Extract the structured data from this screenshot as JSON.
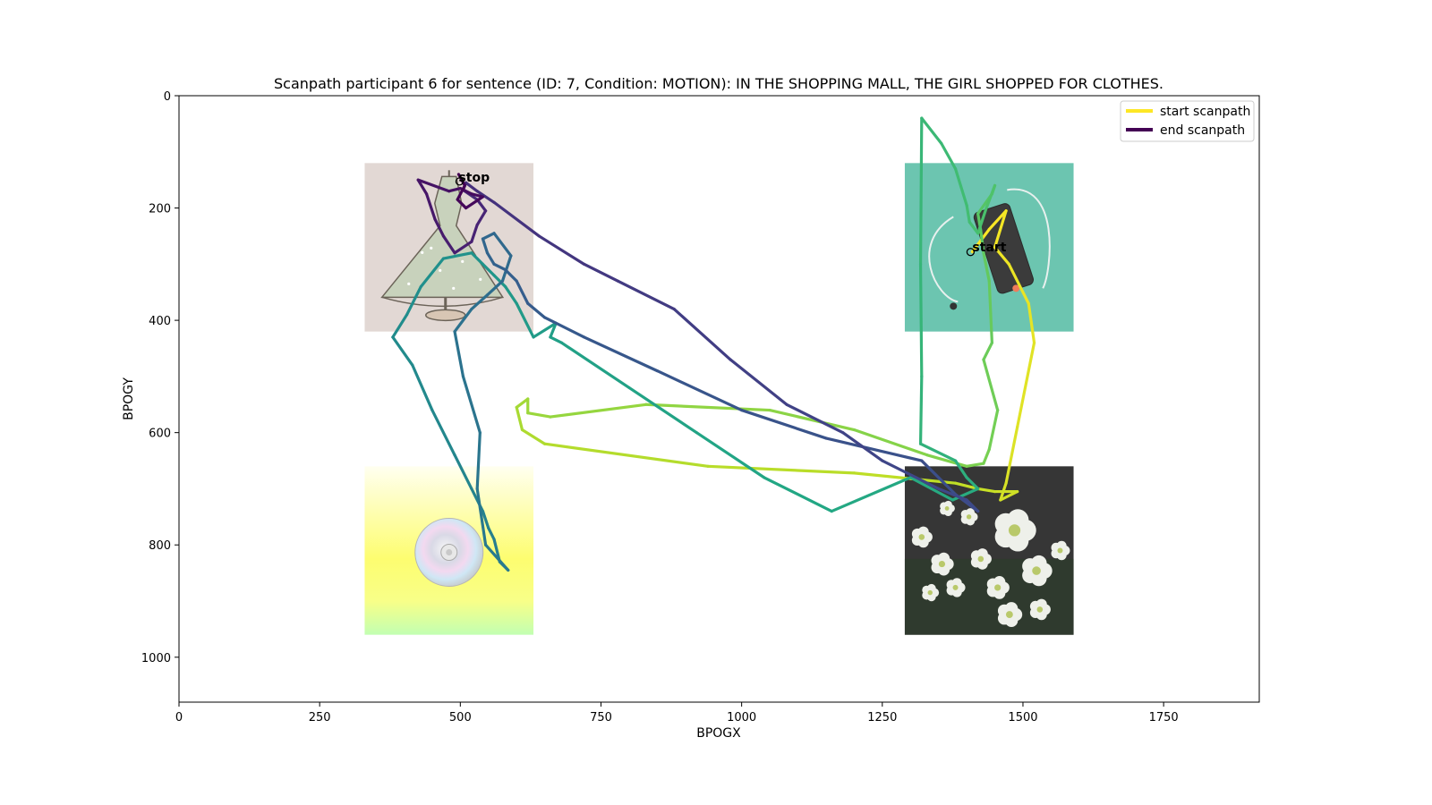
{
  "chart_data": {
    "type": "line",
    "title": "Scanpath participant 6 for sentence (ID: 7, Condition: MOTION):  IN THE SHOPPING MALL, THE GIRL SHOPPED FOR CLOTHES.",
    "xlabel": "BPOGX",
    "ylabel": "BPOGY",
    "xlim": [
      0,
      1920
    ],
    "ylim": [
      1080,
      0
    ],
    "x_ticks": [
      0,
      250,
      500,
      750,
      1000,
      1250,
      1500,
      1750
    ],
    "y_ticks": [
      0,
      200,
      400,
      600,
      800,
      1000
    ],
    "grid": false,
    "legend_position": "top-right",
    "legend": [
      {
        "label": "start scanpath",
        "color": "#fde725"
      },
      {
        "label": "end scanpath",
        "color": "#440154"
      }
    ],
    "colormap": "viridis (reversed: yellow at start, purple at end)",
    "annotations": [
      {
        "text": "start",
        "x": 1410,
        "y": 272
      },
      {
        "text": "stop",
        "x": 497,
        "y": 140
      }
    ],
    "images": [
      {
        "name": "dress-on-mannequin",
        "x_range": [
          330,
          630
        ],
        "y_range": [
          120,
          420
        ]
      },
      {
        "name": "phone-with-earphones",
        "x_range": [
          1290,
          1590
        ],
        "y_range": [
          120,
          420
        ]
      },
      {
        "name": "compact-disc",
        "x_range": [
          330,
          630
        ],
        "y_range": [
          660,
          960
        ]
      },
      {
        "name": "white-flowers",
        "x_range": [
          1290,
          1590
        ],
        "y_range": [
          660,
          960
        ]
      }
    ],
    "scanpath": [
      [
        1410,
        278
      ],
      [
        1440,
        238
      ],
      [
        1470,
        205
      ],
      [
        1450,
        270
      ],
      [
        1475,
        300
      ],
      [
        1510,
        370
      ],
      [
        1520,
        440
      ],
      [
        1490,
        590
      ],
      [
        1470,
        690
      ],
      [
        1460,
        720
      ],
      [
        1490,
        705
      ],
      [
        1450,
        705
      ],
      [
        1420,
        700
      ],
      [
        1380,
        690
      ],
      [
        1200,
        672
      ],
      [
        940,
        660
      ],
      [
        650,
        620
      ],
      [
        610,
        595
      ],
      [
        600,
        555
      ],
      [
        620,
        540
      ],
      [
        620,
        565
      ],
      [
        660,
        572
      ],
      [
        830,
        550
      ],
      [
        1050,
        560
      ],
      [
        1200,
        595
      ],
      [
        1330,
        640
      ],
      [
        1400,
        660
      ],
      [
        1430,
        655
      ],
      [
        1440,
        630
      ],
      [
        1455,
        560
      ],
      [
        1430,
        470
      ],
      [
        1445,
        440
      ],
      [
        1440,
        330
      ],
      [
        1430,
        280
      ],
      [
        1425,
        240
      ],
      [
        1420,
        210
      ],
      [
        1445,
        175
      ],
      [
        1450,
        160
      ],
      [
        1435,
        200
      ],
      [
        1420,
        245
      ],
      [
        1405,
        225
      ],
      [
        1400,
        195
      ],
      [
        1380,
        130
      ],
      [
        1355,
        85
      ],
      [
        1320,
        40
      ],
      [
        1318,
        300
      ],
      [
        1320,
        500
      ],
      [
        1318,
        620
      ],
      [
        1380,
        650
      ],
      [
        1400,
        680
      ],
      [
        1420,
        700
      ],
      [
        1375,
        720
      ],
      [
        1300,
        680
      ],
      [
        1160,
        740
      ],
      [
        1040,
        680
      ],
      [
        920,
        600
      ],
      [
        800,
        520
      ],
      [
        680,
        440
      ],
      [
        660,
        430
      ],
      [
        670,
        405
      ],
      [
        630,
        430
      ],
      [
        600,
        370
      ],
      [
        580,
        340
      ],
      [
        560,
        320
      ],
      [
        540,
        300
      ],
      [
        520,
        280
      ],
      [
        470,
        290
      ],
      [
        430,
        340
      ],
      [
        405,
        390
      ],
      [
        380,
        430
      ],
      [
        415,
        480
      ],
      [
        450,
        560
      ],
      [
        490,
        640
      ],
      [
        520,
        700
      ],
      [
        540,
        740
      ],
      [
        550,
        770
      ],
      [
        560,
        790
      ],
      [
        570,
        830
      ],
      [
        585,
        845
      ],
      [
        545,
        800
      ],
      [
        530,
        700
      ],
      [
        535,
        600
      ],
      [
        505,
        500
      ],
      [
        490,
        420
      ],
      [
        520,
        380
      ],
      [
        548,
        355
      ],
      [
        575,
        330
      ],
      [
        590,
        285
      ],
      [
        560,
        245
      ],
      [
        540,
        255
      ],
      [
        548,
        280
      ],
      [
        560,
        300
      ],
      [
        580,
        310
      ],
      [
        600,
        330
      ],
      [
        620,
        370
      ],
      [
        650,
        395
      ],
      [
        720,
        430
      ],
      [
        850,
        490
      ],
      [
        1000,
        560
      ],
      [
        1150,
        610
      ],
      [
        1320,
        650
      ],
      [
        1380,
        710
      ],
      [
        1420,
        740
      ],
      [
        1400,
        720
      ],
      [
        1350,
        700
      ],
      [
        1250,
        650
      ],
      [
        1180,
        600
      ],
      [
        1080,
        550
      ],
      [
        980,
        470
      ],
      [
        880,
        380
      ],
      [
        780,
        330
      ],
      [
        720,
        300
      ],
      [
        640,
        250
      ],
      [
        560,
        190
      ],
      [
        530,
        170
      ],
      [
        510,
        155
      ],
      [
        505,
        168
      ],
      [
        530,
        185
      ],
      [
        545,
        205
      ],
      [
        530,
        230
      ],
      [
        520,
        260
      ],
      [
        490,
        280
      ],
      [
        470,
        250
      ],
      [
        455,
        220
      ],
      [
        440,
        175
      ],
      [
        425,
        150
      ],
      [
        480,
        170
      ],
      [
        500,
        165
      ],
      [
        520,
        175
      ],
      [
        540,
        180
      ],
      [
        510,
        200
      ],
      [
        495,
        185
      ],
      [
        508,
        160
      ],
      [
        497,
        140
      ]
    ]
  }
}
